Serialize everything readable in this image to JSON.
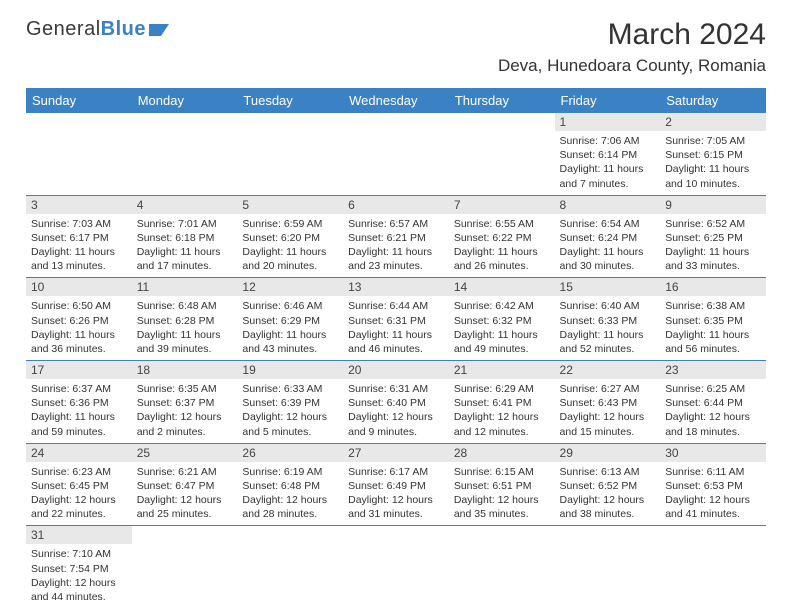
{
  "brand": {
    "part1": "General",
    "part2": "Blue"
  },
  "title": "March 2024",
  "location": "Deva, Hunedoara County, Romania",
  "colors": {
    "header_bg": "#3b82c4",
    "header_text": "#ffffff",
    "daynum_bg": "#e8e8e8",
    "row_border": "#3b82c4",
    "page_bg": "#ffffff",
    "text": "#333333"
  },
  "weekdays": [
    "Sunday",
    "Monday",
    "Tuesday",
    "Wednesday",
    "Thursday",
    "Friday",
    "Saturday"
  ],
  "weeks": [
    [
      null,
      null,
      null,
      null,
      null,
      {
        "n": "1",
        "sr": "7:06 AM",
        "ss": "6:14 PM",
        "dh": "11",
        "dm": "7"
      },
      {
        "n": "2",
        "sr": "7:05 AM",
        "ss": "6:15 PM",
        "dh": "11",
        "dm": "10"
      }
    ],
    [
      {
        "n": "3",
        "sr": "7:03 AM",
        "ss": "6:17 PM",
        "dh": "11",
        "dm": "13"
      },
      {
        "n": "4",
        "sr": "7:01 AM",
        "ss": "6:18 PM",
        "dh": "11",
        "dm": "17"
      },
      {
        "n": "5",
        "sr": "6:59 AM",
        "ss": "6:20 PM",
        "dh": "11",
        "dm": "20"
      },
      {
        "n": "6",
        "sr": "6:57 AM",
        "ss": "6:21 PM",
        "dh": "11",
        "dm": "23"
      },
      {
        "n": "7",
        "sr": "6:55 AM",
        "ss": "6:22 PM",
        "dh": "11",
        "dm": "26"
      },
      {
        "n": "8",
        "sr": "6:54 AM",
        "ss": "6:24 PM",
        "dh": "11",
        "dm": "30"
      },
      {
        "n": "9",
        "sr": "6:52 AM",
        "ss": "6:25 PM",
        "dh": "11",
        "dm": "33"
      }
    ],
    [
      {
        "n": "10",
        "sr": "6:50 AM",
        "ss": "6:26 PM",
        "dh": "11",
        "dm": "36"
      },
      {
        "n": "11",
        "sr": "6:48 AM",
        "ss": "6:28 PM",
        "dh": "11",
        "dm": "39"
      },
      {
        "n": "12",
        "sr": "6:46 AM",
        "ss": "6:29 PM",
        "dh": "11",
        "dm": "43"
      },
      {
        "n": "13",
        "sr": "6:44 AM",
        "ss": "6:31 PM",
        "dh": "11",
        "dm": "46"
      },
      {
        "n": "14",
        "sr": "6:42 AM",
        "ss": "6:32 PM",
        "dh": "11",
        "dm": "49"
      },
      {
        "n": "15",
        "sr": "6:40 AM",
        "ss": "6:33 PM",
        "dh": "11",
        "dm": "52"
      },
      {
        "n": "16",
        "sr": "6:38 AM",
        "ss": "6:35 PM",
        "dh": "11",
        "dm": "56"
      }
    ],
    [
      {
        "n": "17",
        "sr": "6:37 AM",
        "ss": "6:36 PM",
        "dh": "11",
        "dm": "59"
      },
      {
        "n": "18",
        "sr": "6:35 AM",
        "ss": "6:37 PM",
        "dh": "12",
        "dm": "2"
      },
      {
        "n": "19",
        "sr": "6:33 AM",
        "ss": "6:39 PM",
        "dh": "12",
        "dm": "5"
      },
      {
        "n": "20",
        "sr": "6:31 AM",
        "ss": "6:40 PM",
        "dh": "12",
        "dm": "9"
      },
      {
        "n": "21",
        "sr": "6:29 AM",
        "ss": "6:41 PM",
        "dh": "12",
        "dm": "12"
      },
      {
        "n": "22",
        "sr": "6:27 AM",
        "ss": "6:43 PM",
        "dh": "12",
        "dm": "15"
      },
      {
        "n": "23",
        "sr": "6:25 AM",
        "ss": "6:44 PM",
        "dh": "12",
        "dm": "18"
      }
    ],
    [
      {
        "n": "24",
        "sr": "6:23 AM",
        "ss": "6:45 PM",
        "dh": "12",
        "dm": "22"
      },
      {
        "n": "25",
        "sr": "6:21 AM",
        "ss": "6:47 PM",
        "dh": "12",
        "dm": "25"
      },
      {
        "n": "26",
        "sr": "6:19 AM",
        "ss": "6:48 PM",
        "dh": "12",
        "dm": "28"
      },
      {
        "n": "27",
        "sr": "6:17 AM",
        "ss": "6:49 PM",
        "dh": "12",
        "dm": "31"
      },
      {
        "n": "28",
        "sr": "6:15 AM",
        "ss": "6:51 PM",
        "dh": "12",
        "dm": "35"
      },
      {
        "n": "29",
        "sr": "6:13 AM",
        "ss": "6:52 PM",
        "dh": "12",
        "dm": "38"
      },
      {
        "n": "30",
        "sr": "6:11 AM",
        "ss": "6:53 PM",
        "dh": "12",
        "dm": "41"
      }
    ],
    [
      {
        "n": "31",
        "sr": "7:10 AM",
        "ss": "7:54 PM",
        "dh": "12",
        "dm": "44"
      },
      null,
      null,
      null,
      null,
      null,
      null
    ]
  ],
  "labels": {
    "sunrise": "Sunrise:",
    "sunset": "Sunset:",
    "daylight": "Daylight:",
    "hours": "hours",
    "and": "and",
    "minutes": "minutes."
  }
}
